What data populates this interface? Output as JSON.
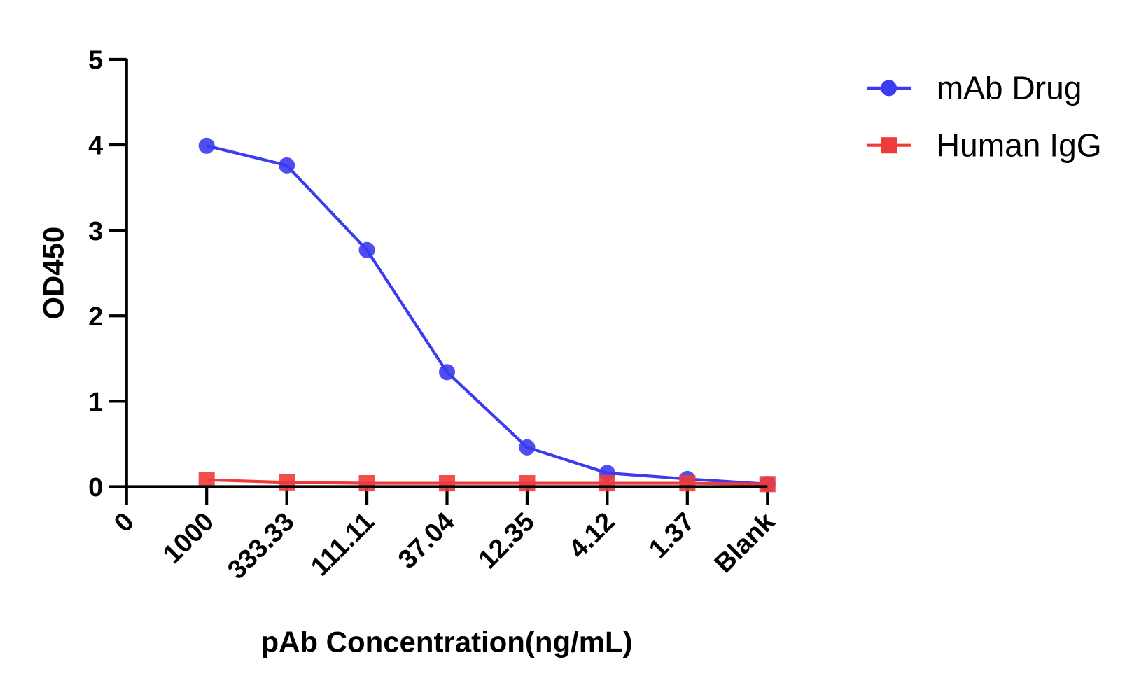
{
  "chart_data": {
    "type": "line",
    "categories": [
      "0",
      "1000",
      "333.33",
      "111.11",
      "37.04",
      "12.35",
      "4.12",
      "1.37",
      "Blank"
    ],
    "x_label": "pAb Concentration(ng/mL)",
    "y_label": "OD450",
    "series": [
      {
        "name": "mAb Drug",
        "color": "#3b3bf0",
        "marker": "circle",
        "values": [
          null,
          3.99,
          3.76,
          2.77,
          1.34,
          0.46,
          0.16,
          0.09,
          0.03
        ]
      },
      {
        "name": "Human IgG",
        "color": "#f03b3b",
        "marker": "square",
        "values": [
          null,
          0.08,
          0.05,
          0.04,
          0.04,
          0.04,
          0.04,
          0.04,
          0.03
        ]
      }
    ],
    "ylim": [
      0,
      5
    ],
    "yticks": [
      0,
      1,
      2,
      3,
      4,
      5
    ],
    "legend": "right"
  }
}
